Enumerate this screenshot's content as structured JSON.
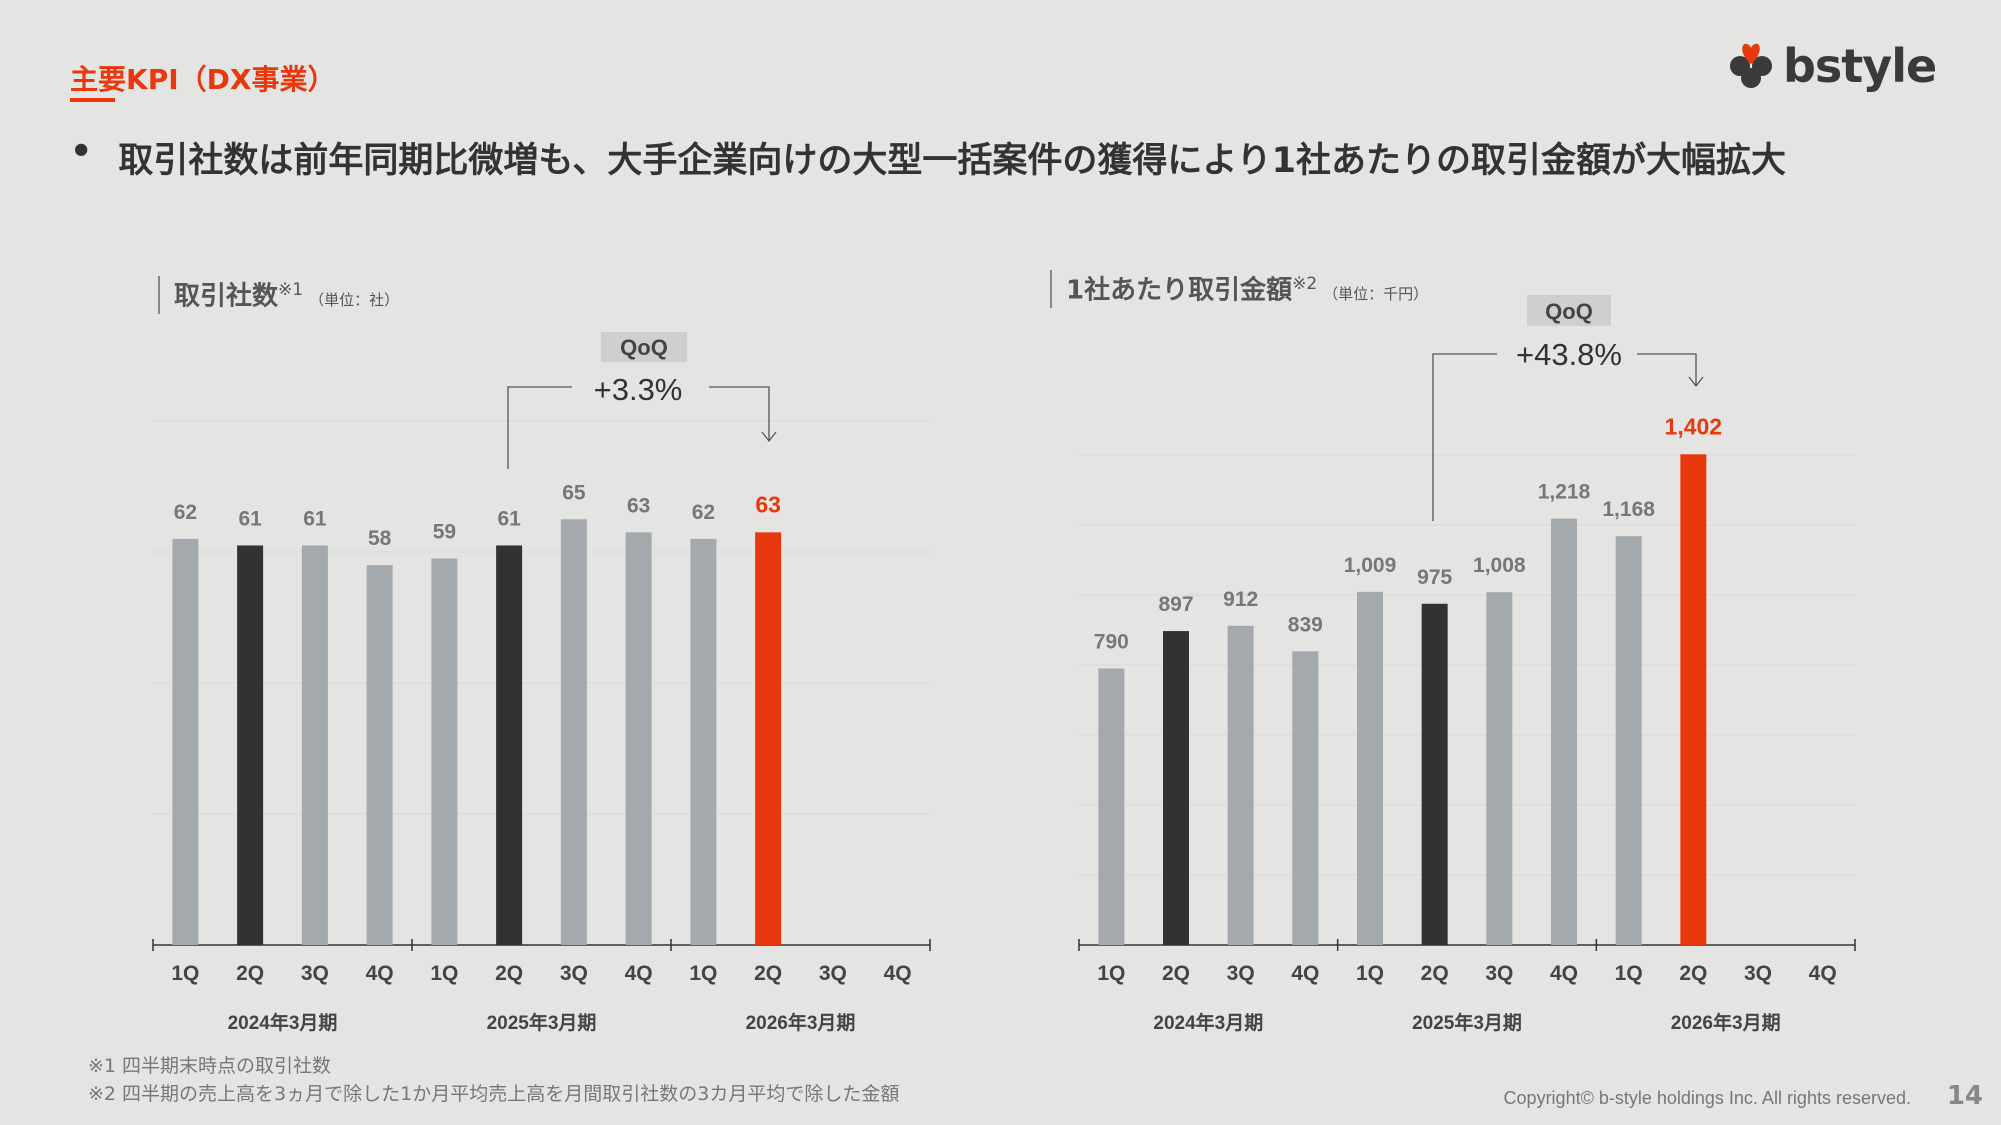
{
  "header": {
    "section_title": "主要KPI（DX事業）",
    "logo_text": "bstyle"
  },
  "bullet": {
    "marker": "•",
    "text": "取引社数は前年同期比微増も、大手企業向けの大型一括案件の獲得により1社あたりの取引金額が大幅拡大"
  },
  "colors": {
    "accent": "#e8380d",
    "gray_bar": "#a4a9ae",
    "dark_bar": "#333231",
    "background": "#e4e4e2"
  },
  "chart_data": [
    {
      "type": "bar",
      "title": "取引社数",
      "note_mark": "※1",
      "unit": "（単位：社）",
      "categories": [
        "1Q",
        "2Q",
        "3Q",
        "4Q",
        "1Q",
        "2Q",
        "3Q",
        "4Q",
        "1Q",
        "2Q",
        "3Q",
        "4Q"
      ],
      "groups": [
        "2024年3月期",
        "2025年3月期",
        "2026年3月期"
      ],
      "values": [
        62,
        61,
        61,
        58,
        59,
        61,
        65,
        63,
        62,
        63,
        null,
        null
      ],
      "value_labels": [
        "62",
        "61",
        "61",
        "58",
        "59",
        "61",
        "65",
        "63",
        "62",
        "63",
        "",
        ""
      ],
      "bar_styles": [
        "gray",
        "dark",
        "gray",
        "gray",
        "gray",
        "dark",
        "gray",
        "gray",
        "gray",
        "accent",
        "gray",
        "gray"
      ],
      "ylim": [
        0,
        80
      ],
      "grid_step": 10,
      "annotation": {
        "label": "QoQ",
        "value": "+3.3%",
        "from_index": 5,
        "to_index": 9
      }
    },
    {
      "type": "bar",
      "title": "1社あたり取引金額",
      "note_mark": "※2",
      "unit": "（単位：千円）",
      "categories": [
        "1Q",
        "2Q",
        "3Q",
        "4Q",
        "1Q",
        "2Q",
        "3Q",
        "4Q",
        "1Q",
        "2Q",
        "3Q",
        "4Q"
      ],
      "groups": [
        "2024年3月期",
        "2025年3月期",
        "2026年3月期"
      ],
      "values": [
        790,
        897,
        912,
        839,
        1009,
        975,
        1008,
        1218,
        1168,
        1402,
        null,
        null
      ],
      "value_labels": [
        "790",
        "897",
        "912",
        "839",
        "1,009",
        "975",
        "1,008",
        "1,218",
        "1,168",
        "1,402",
        "",
        ""
      ],
      "bar_styles": [
        "gray",
        "dark",
        "gray",
        "gray",
        "gray",
        "dark",
        "gray",
        "gray",
        "gray",
        "accent",
        "gray",
        "gray"
      ],
      "ylim": [
        0,
        1200
      ],
      "grid_step": 200,
      "annotation": {
        "label": "QoQ",
        "value": "+43.8%",
        "from_index": 5,
        "to_index": 9
      }
    }
  ],
  "footnotes": [
    "※1 四半期末時点の取引社数",
    "※2 四半期の売上高を3ヵ月で除した1か月平均売上高を月間取引社数の3カ月平均で除した金額"
  ],
  "footer": {
    "copyright": "Copyright© b-style holdings Inc. All rights reserved.",
    "page_number": "14"
  }
}
